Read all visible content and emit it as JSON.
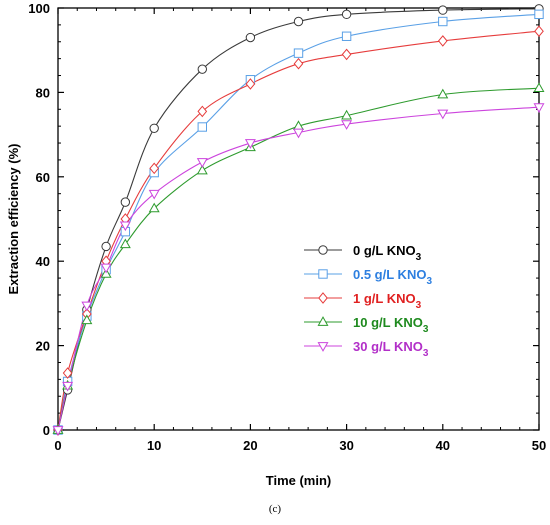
{
  "caption": "(c)",
  "chart_data": {
    "type": "line",
    "title": "",
    "xlabel": "Time (min)",
    "ylabel": "Extraction efficiency (%)",
    "xlim": [
      0,
      50
    ],
    "ylim": [
      0,
      100
    ],
    "xticks": [
      0,
      10,
      20,
      30,
      40,
      50
    ],
    "yticks": [
      0,
      20,
      40,
      60,
      80,
      100
    ],
    "grid": false,
    "legend_position": "center-right",
    "x": [
      0,
      1,
      3,
      5,
      7,
      10,
      15,
      20,
      25,
      30,
      40,
      50
    ],
    "series": [
      {
        "name": "0 g/L KNO",
        "subscript": "3",
        "color": "#3a3a3a",
        "text_color": "#000000",
        "marker": "circle",
        "values": [
          0,
          9.5,
          28.5,
          43.5,
          54,
          71.5,
          85.5,
          93,
          96.8,
          98.5,
          99.5,
          99.8
        ]
      },
      {
        "name": "0.5 g/L KNO",
        "subscript": "3",
        "color": "#5aa0e6",
        "text_color": "#2d7fe0",
        "marker": "square",
        "values": [
          0,
          11.5,
          27,
          38,
          47,
          61,
          71.8,
          83,
          89.3,
          93.3,
          96.8,
          98.5
        ]
      },
      {
        "name": "1 g/L KNO",
        "subscript": "3",
        "color": "#e63c3c",
        "text_color": "#e02020",
        "marker": "diamond",
        "values": [
          0,
          13.5,
          27.5,
          40,
          50,
          62,
          75.5,
          82,
          86.8,
          89,
          92.2,
          94.5
        ]
      },
      {
        "name": "10 g/L KNO",
        "subscript": "3",
        "color": "#2e9b2e",
        "text_color": "#1e8a1e",
        "marker": "triangle-up",
        "values": [
          0,
          10.5,
          26,
          37,
          44,
          52.5,
          61.5,
          67,
          72,
          74.5,
          79.5,
          81
        ]
      },
      {
        "name": "30 g/L KNO",
        "subscript": "3",
        "color": "#cc44dd",
        "text_color": "#b22fc8",
        "marker": "triangle-down",
        "values": [
          0,
          10.5,
          29.5,
          38.5,
          48.5,
          56,
          63.5,
          68,
          70.5,
          72.5,
          75,
          76.5
        ]
      }
    ]
  }
}
